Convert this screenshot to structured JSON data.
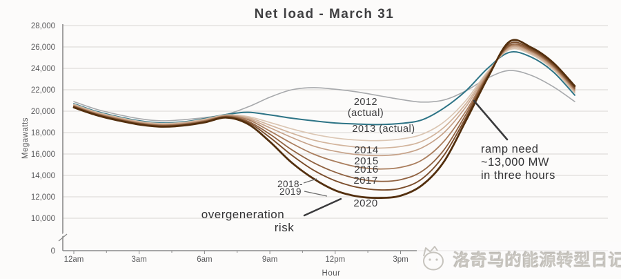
{
  "chart_data": {
    "type": "line",
    "title": "Net load - March 31",
    "xlabel": "Hour",
    "ylabel": "Megawatts",
    "grid": true,
    "legend_position": "inline-labels",
    "x_unit": "hour-of-day",
    "x_tick_hours": [
      0,
      3,
      6,
      9,
      12,
      15
    ],
    "x_tick_labels": [
      "12am",
      "3am",
      "6am",
      "9am",
      "12pm",
      "3pm"
    ],
    "y_tick_values": [
      28000,
      26000,
      24000,
      22000,
      20000,
      18000,
      16000,
      14000,
      12000,
      10000,
      0
    ],
    "y_tick_labels": [
      "28,000",
      "26,000",
      "24,000",
      "22,000",
      "20,000",
      "18,000",
      "16,000",
      "14,000",
      "12,000",
      "10,000",
      "0"
    ],
    "ylim": [
      10000,
      28000
    ],
    "axis_break_below": 10000,
    "hours": [
      0,
      1,
      2,
      3,
      4,
      5,
      6,
      7,
      8,
      9,
      10,
      11,
      12,
      13,
      14,
      15,
      16,
      17,
      18,
      19,
      20,
      21,
      22,
      23
    ],
    "series": [
      {
        "id": "2012",
        "label_lines": [
          "2012",
          "(actual)"
        ],
        "color": "#a7a9ac",
        "width": 1.6,
        "values": [
          20900,
          20200,
          19700,
          19300,
          19100,
          19200,
          19400,
          19700,
          20400,
          21300,
          22000,
          22200,
          22050,
          21800,
          21450,
          21100,
          20850,
          21050,
          21900,
          23100,
          23800,
          23350,
          22300,
          20900
        ]
      },
      {
        "id": "2013",
        "label_lines": [
          "2013 (actual)"
        ],
        "color": "#2d7486",
        "width": 2,
        "values": [
          20700,
          20000,
          19500,
          19100,
          18900,
          19000,
          19300,
          19700,
          19900,
          19650,
          19350,
          19100,
          18900,
          18800,
          18750,
          18850,
          19200,
          20300,
          21900,
          24000,
          25500,
          25050,
          23700,
          21500
        ]
      },
      {
        "id": "2014",
        "label_lines": [
          "2014"
        ],
        "color": "#dbc6b3",
        "width": 1.7,
        "values": [
          20650,
          19950,
          19450,
          19050,
          18850,
          18950,
          19250,
          19650,
          19500,
          18950,
          18350,
          17850,
          17500,
          17300,
          17250,
          17400,
          17850,
          19000,
          21000,
          23700,
          25750,
          25300,
          23900,
          21700
        ]
      },
      {
        "id": "2015",
        "label_lines": [
          "2015"
        ],
        "color": "#d2b49c",
        "width": 1.7,
        "values": [
          20600,
          19900,
          19400,
          19000,
          18800,
          18900,
          19200,
          19600,
          19400,
          18700,
          17950,
          17300,
          16900,
          16650,
          16550,
          16700,
          17200,
          18500,
          20700,
          23600,
          25850,
          25400,
          24000,
          21800
        ]
      },
      {
        "id": "2016",
        "label_lines": [
          "2016"
        ],
        "color": "#c6a289",
        "width": 1.7,
        "values": [
          20550,
          19850,
          19350,
          18950,
          18750,
          18850,
          19150,
          19600,
          19300,
          18450,
          17550,
          16750,
          16250,
          15950,
          15850,
          16000,
          16600,
          18000,
          20400,
          23500,
          25950,
          25500,
          24100,
          21900
        ]
      },
      {
        "id": "2017",
        "label_lines": [
          "2017"
        ],
        "color": "#aa7e5e",
        "width": 1.8,
        "values": [
          20500,
          19800,
          19300,
          18900,
          18700,
          18800,
          19100,
          19550,
          19200,
          18150,
          17000,
          16000,
          15300,
          14800,
          14600,
          14750,
          15450,
          17200,
          20000,
          23400,
          26050,
          25600,
          24200,
          22000
        ]
      },
      {
        "id": "2018",
        "label_lines": [
          "2018-"
        ],
        "color": "#8f6140",
        "width": 1.8,
        "values": [
          20450,
          19750,
          19250,
          18850,
          18650,
          18750,
          19050,
          19500,
          19050,
          17850,
          16400,
          15200,
          14300,
          13700,
          13450,
          13600,
          14400,
          16400,
          19700,
          23300,
          26150,
          25700,
          24300,
          22100
        ]
      },
      {
        "id": "2019",
        "label_lines": [
          "2019"
        ],
        "color": "#7a4c2a",
        "width": 1.9,
        "values": [
          20400,
          19700,
          19200,
          18800,
          18600,
          18700,
          19000,
          19450,
          18950,
          17550,
          15900,
          14500,
          13500,
          12900,
          12650,
          12800,
          13700,
          15900,
          19400,
          23200,
          26300,
          25800,
          24400,
          22200
        ]
      },
      {
        "id": "2020",
        "label_lines": [
          "2020"
        ],
        "color": "#532f0e",
        "width": 2.8,
        "values": [
          20350,
          19650,
          19150,
          18750,
          18550,
          18650,
          18950,
          19400,
          18800,
          17150,
          15200,
          13700,
          12600,
          12050,
          11900,
          12100,
          13100,
          15300,
          19100,
          23100,
          26500,
          25950,
          24550,
          22350
        ]
      }
    ],
    "annotations": [
      {
        "id": "overgeneration",
        "lines": [
          "overgeneration",
          "risk"
        ]
      },
      {
        "id": "ramp",
        "lines": [
          "ramp need",
          "~13,000 MW",
          "in three hours"
        ]
      }
    ]
  },
  "watermark": {
    "text": "洛奇马的能源转型日记",
    "icon": "animal-face-icon"
  }
}
